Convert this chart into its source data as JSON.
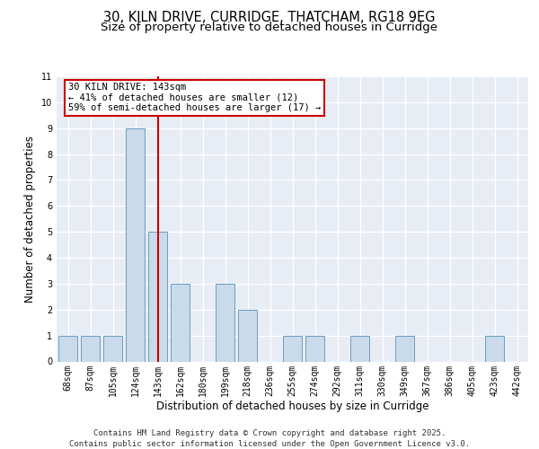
{
  "title_line1": "30, KILN DRIVE, CURRIDGE, THATCHAM, RG18 9EG",
  "title_line2": "Size of property relative to detached houses in Curridge",
  "xlabel": "Distribution of detached houses by size in Curridge",
  "ylabel": "Number of detached properties",
  "categories": [
    "68sqm",
    "87sqm",
    "105sqm",
    "124sqm",
    "143sqm",
    "162sqm",
    "180sqm",
    "199sqm",
    "218sqm",
    "236sqm",
    "255sqm",
    "274sqm",
    "292sqm",
    "311sqm",
    "330sqm",
    "349sqm",
    "367sqm",
    "386sqm",
    "405sqm",
    "423sqm",
    "442sqm"
  ],
  "values": [
    1,
    1,
    1,
    9,
    5,
    3,
    0,
    3,
    2,
    0,
    1,
    1,
    0,
    1,
    0,
    1,
    0,
    0,
    0,
    1,
    0
  ],
  "bar_color": "#c9daea",
  "bar_edge_color": "#6a9ec0",
  "reference_bar_index": 4,
  "reference_line_color": "#cc0000",
  "annotation_text": "30 KILN DRIVE: 143sqm\n← 41% of detached houses are smaller (12)\n59% of semi-detached houses are larger (17) →",
  "annotation_box_facecolor": "#ffffff",
  "annotation_box_edgecolor": "#cc0000",
  "ylim": [
    0,
    11
  ],
  "yticks": [
    0,
    1,
    2,
    3,
    4,
    5,
    6,
    7,
    8,
    9,
    10,
    11
  ],
  "background_color": "#e8edf5",
  "footer_text": "Contains HM Land Registry data © Crown copyright and database right 2025.\nContains public sector information licensed under the Open Government Licence v3.0.",
  "grid_color": "#ffffff",
  "title_fontsize": 10.5,
  "subtitle_fontsize": 9.5,
  "axis_label_fontsize": 8.5,
  "tick_fontsize": 7,
  "footer_fontsize": 6.5,
  "ann_fontsize": 7.5
}
